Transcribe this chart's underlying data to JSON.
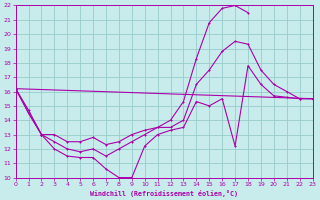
{
  "xlabel": "Windchill (Refroidissement éolien,°C)",
  "bg_color": "#c8ecec",
  "line_color": "#aa00aa",
  "grid_color": "#99cccc",
  "xmin": 0,
  "xmax": 23,
  "ymin": 10,
  "ymax": 22,
  "line1_x": [
    0,
    1,
    2,
    3,
    4,
    5,
    6,
    7,
    8,
    9,
    10,
    11,
    12,
    13,
    14,
    15,
    16,
    17,
    18,
    19,
    20,
    21,
    22,
    23
  ],
  "line1_y": [
    16.2,
    14.7,
    13.0,
    12.0,
    11.5,
    11.4,
    11.4,
    10.6,
    10.0,
    10.0,
    12.2,
    13.0,
    13.3,
    13.5,
    15.3,
    15.0,
    15.5,
    12.2,
    17.8,
    16.5,
    15.7,
    15.6,
    15.5,
    15.5
  ],
  "line2_x": [
    0,
    1,
    2,
    3,
    4,
    5,
    6,
    7,
    8,
    9,
    10,
    11,
    12,
    13,
    14,
    15,
    16,
    17,
    18,
    19,
    20,
    21,
    22,
    23
  ],
  "line2_y": [
    16.2,
    14.5,
    13.0,
    13.0,
    12.5,
    12.5,
    12.8,
    12.3,
    12.5,
    13.0,
    13.3,
    13.5,
    13.5,
    14.0,
    16.5,
    17.5,
    18.8,
    19.5,
    19.3,
    17.5,
    16.5,
    16.0,
    15.5,
    15.5
  ],
  "line3_x": [
    0,
    1,
    2,
    3,
    4,
    5,
    6,
    7,
    8,
    9,
    10,
    11,
    12,
    13,
    14,
    15,
    16,
    17,
    18
  ],
  "line3_y": [
    16.2,
    14.5,
    13.0,
    12.5,
    12.0,
    11.8,
    12.0,
    11.5,
    12.0,
    12.5,
    13.0,
    13.5,
    14.0,
    15.3,
    18.3,
    20.8,
    21.8,
    22.0,
    21.5
  ],
  "line4_x": [
    0,
    23
  ],
  "line4_y": [
    16.2,
    15.5
  ]
}
